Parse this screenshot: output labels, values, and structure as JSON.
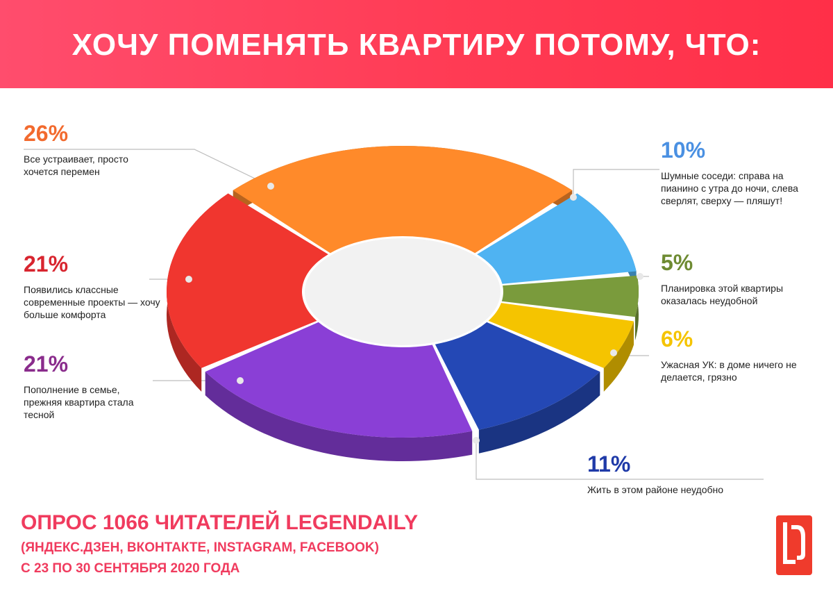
{
  "title": "ХОЧУ ПОМЕНЯТЬ КВАРТИРУ ПОТОМУ, ЧТО:",
  "chart_data": {
    "type": "pie",
    "variant": "3d-donut",
    "title": "ХОЧУ ПОМЕНЯТЬ КВАРТИРУ ПОТОМУ, ЧТО:",
    "unit": "%",
    "slices": [
      {
        "label": "Все устраивает, просто хочется перемен",
        "value": 26,
        "value_label": "26%",
        "color": "#ff8a2a",
        "pct_color": "#f26a2e"
      },
      {
        "label": "Шумные соседи: справа на пианино с утра до ночи, слева сверлят, сверху — пляшут!",
        "value": 10,
        "value_label": "10%",
        "color": "#4fb3f2",
        "pct_color": "#4a90e2"
      },
      {
        "label": "Планировка этой квартиры оказалась неудобной",
        "value": 5,
        "value_label": "5%",
        "color": "#7a9b3c",
        "pct_color": "#6e8b32"
      },
      {
        "label": "Ужасная УК:  в доме ничего не делается, грязно",
        "value": 6,
        "value_label": "6%",
        "color": "#f5c400",
        "pct_color": "#f5c400"
      },
      {
        "label": "Жить в этом районе неудобно",
        "value": 11,
        "value_label": "11%",
        "color": "#2448b5",
        "pct_color": "#1f3aa8"
      },
      {
        "label": "Пополнение в семье, прежняя квартира стала тесной",
        "value": 21,
        "value_label": "21%",
        "color": "#8a3fd6",
        "pct_color": "#8a2c8c"
      },
      {
        "label": "Появились классные современные проекты — хочу больше комфорта",
        "value": 21,
        "value_label": "21%",
        "color": "#f0362f",
        "pct_color": "#d8252f"
      }
    ]
  },
  "callouts": {
    "c26": {
      "pct": "26%",
      "text": "Все устраивает, просто хочется перемен"
    },
    "c10": {
      "pct": "10%",
      "text": "Шумные соседи: справа на пианино с утра до ночи, слева сверлят, сверху — пляшут!"
    },
    "c5": {
      "pct": "5%",
      "text": "Планировка этой квартиры оказалась неудобной"
    },
    "c6": {
      "pct": "6%",
      "text": "Ужасная УК:  в доме ничего не делается, грязно"
    },
    "c11": {
      "pct": "11%",
      "text": "Жить в этом районе неудобно"
    },
    "c21a": {
      "pct": "21%",
      "text": "Пополнение в семье, прежняя квартира стала тесной"
    },
    "c21b": {
      "pct": "21%",
      "text": "Появились классные современные проекты — хочу больше комфорта"
    }
  },
  "footer": {
    "line1_pre": "ОПРОС ",
    "line1_num": "1066",
    "line1_post": " ЧИТАТЕЛЕЙ LEGENDAILY",
    "line2": "(ЯНДЕКС.ДЗЕН, ВКОНТАКТЕ, INSTAGRAM, FACEBOOK)",
    "line3": "С 23 ПО 30 СЕНТЯБРЯ 2020 ГОДА"
  },
  "logo": {
    "text": "LD",
    "color": "#ef3b2c"
  }
}
